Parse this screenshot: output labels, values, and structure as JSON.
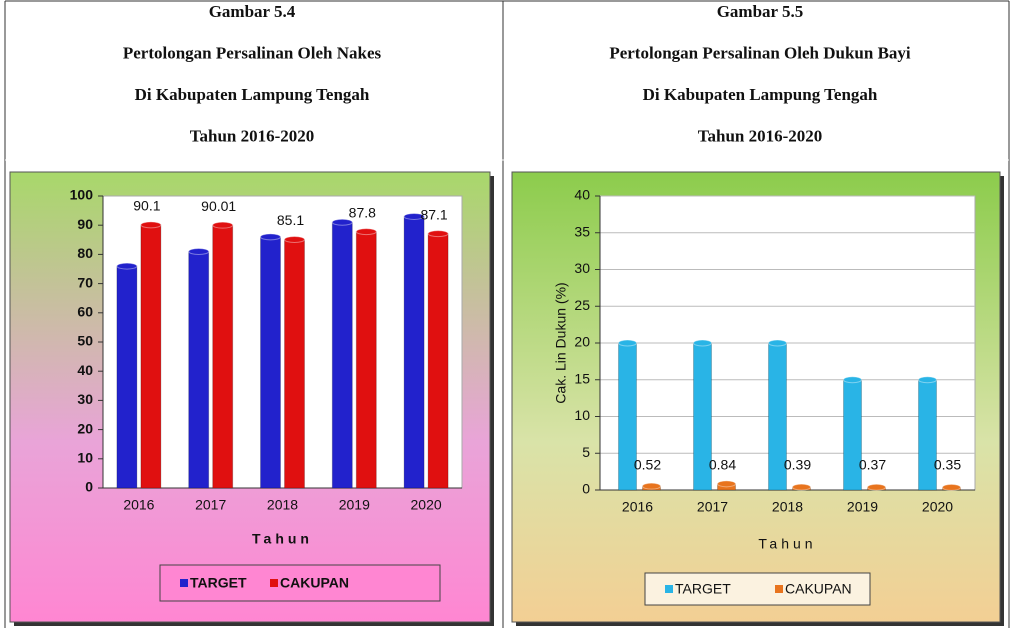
{
  "chart_data": [
    {
      "type": "bar",
      "caption": [
        "Gambar 5.4",
        "Pertolongan Persalinan Oleh Nakes",
        "Di Kabupaten Lampung Tengah",
        "Tahun 2016-2020"
      ],
      "xlabel": "Tahun",
      "categories": [
        "2016",
        "2017",
        "2018",
        "2019",
        "2020"
      ],
      "series": [
        {
          "name": "TARGET",
          "color": "#2222cc",
          "values": [
            76,
            81,
            86,
            91,
            93
          ]
        },
        {
          "name": "CAKUPAN",
          "color": "#e01010",
          "values": [
            90.1,
            90.01,
            85.1,
            87.8,
            87.1
          ],
          "show_labels": true
        }
      ],
      "ylim": [
        0,
        100
      ],
      "yticks": [
        0,
        10,
        20,
        30,
        40,
        50,
        60,
        70,
        80,
        90,
        100
      ],
      "grid": false,
      "legend": "bottom"
    },
    {
      "type": "bar",
      "caption": [
        "Gambar 5.5",
        "Pertolongan Persalinan Oleh Dukun Bayi",
        "Di Kabupaten Lampung Tengah",
        "Tahun 2016-2020"
      ],
      "xlabel": "Tahun",
      "ylabel": "Cak. Lin Dukun (%)",
      "categories": [
        "2016",
        "2017",
        "2018",
        "2019",
        "2020"
      ],
      "series": [
        {
          "name": "TARGET",
          "color": "#29b4e6",
          "values": [
            20,
            20,
            20,
            15,
            15
          ]
        },
        {
          "name": "CAKUPAN",
          "color": "#e8741e",
          "values": [
            0.52,
            0.84,
            0.39,
            0.37,
            0.35
          ],
          "show_labels": true
        }
      ],
      "ylim": [
        0,
        40
      ],
      "yticks": [
        0,
        5,
        10,
        15,
        20,
        25,
        30,
        35,
        40
      ],
      "grid": true,
      "legend": "bottom"
    }
  ]
}
